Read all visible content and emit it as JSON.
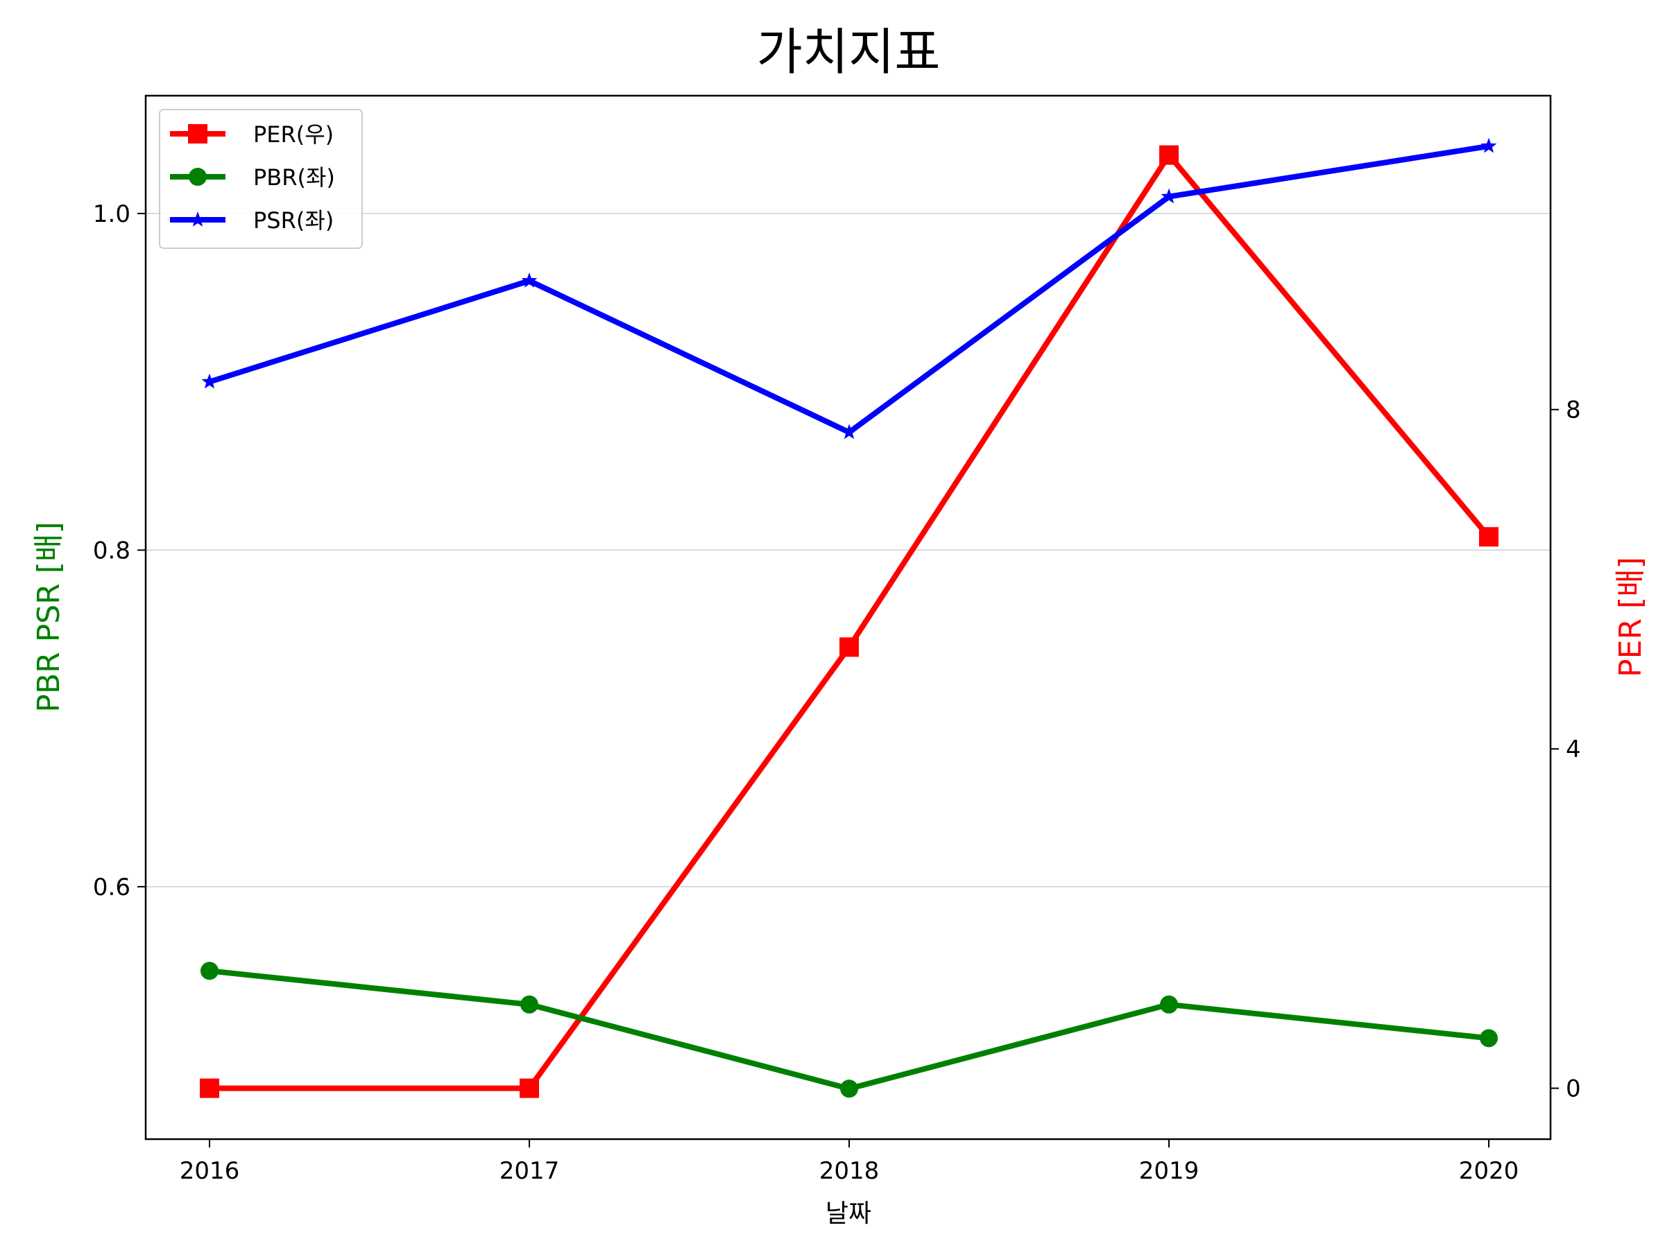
{
  "chart_data": {
    "type": "line",
    "title": "가치지표",
    "xlabel": "날짜",
    "ylabel_left": "PBR PSR [배]",
    "ylabel_right": "PER [배]",
    "x": [
      "2016",
      "2017",
      "2018",
      "2019",
      "2020"
    ],
    "left_axis": {
      "ylim": [
        0.45,
        1.07
      ],
      "ticks": [
        0.6,
        0.8,
        1.0
      ],
      "tick_labels": [
        "0.6",
        "0.8",
        "1.0"
      ],
      "grid": true,
      "label_color": "#008000"
    },
    "right_axis": {
      "ylim": [
        -0.6,
        11.7
      ],
      "ticks": [
        0,
        4,
        8
      ],
      "tick_labels": [
        "0",
        "4",
        "8"
      ],
      "label_color": "#ff0000"
    },
    "series": [
      {
        "name": "PER(우)",
        "axis": "right",
        "color": "#ff0000",
        "marker": "square",
        "values": [
          0.0,
          0.0,
          5.2,
          11.0,
          6.5
        ]
      },
      {
        "name": "PBR(좌)",
        "axis": "left",
        "color": "#008000",
        "marker": "circle",
        "values": [
          0.55,
          0.53,
          0.48,
          0.53,
          0.51
        ]
      },
      {
        "name": "PSR(좌)",
        "axis": "left",
        "color": "#0000ff",
        "marker": "star",
        "values": [
          0.9,
          0.96,
          0.87,
          1.01,
          1.04
        ]
      }
    ],
    "legend_placement": "top-left"
  }
}
